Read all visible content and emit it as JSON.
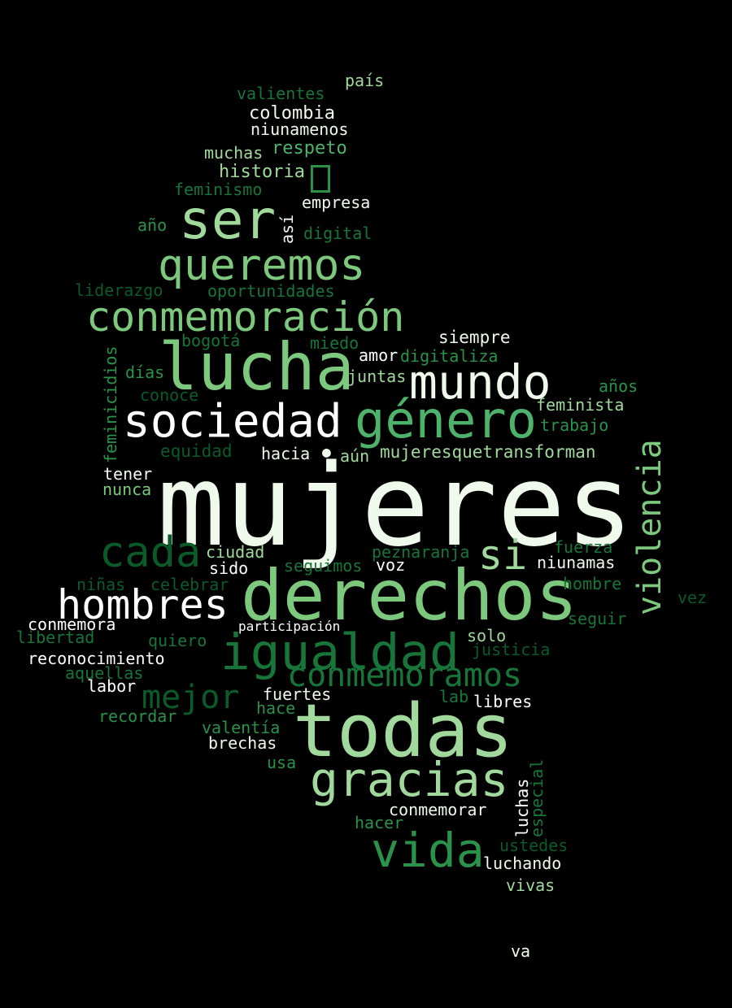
{
  "words": [
    {
      "text": "mujeres",
      "color": "c0"
    },
    {
      "text": "derechos",
      "color": "c2"
    },
    {
      "text": "todas",
      "color": "c1"
    },
    {
      "text": "lucha",
      "color": "c2"
    },
    {
      "text": "igualdad",
      "color": "c5"
    },
    {
      "text": "ser",
      "color": "c1"
    },
    {
      "text": "mundo",
      "color": "c0"
    },
    {
      "text": "sociedad",
      "color": "c7"
    },
    {
      "text": "género",
      "color": "c3"
    },
    {
      "text": "hombres",
      "color": "c7"
    },
    {
      "text": "conmemoración",
      "color": "c2"
    },
    {
      "text": "queremos",
      "color": "c2"
    },
    {
      "text": "gracias",
      "color": "c1"
    },
    {
      "text": "vida",
      "color": "c4"
    },
    {
      "text": "cada",
      "color": "c6"
    },
    {
      "text": "conmemoramos",
      "color": "c5"
    },
    {
      "text": "mejor",
      "color": "c6"
    },
    {
      "text": "si",
      "color": "c1"
    },
    {
      "text": "violencia",
      "color": "c2"
    },
    {
      "text": "país",
      "color": "c1"
    },
    {
      "text": "valientes",
      "color": "c5"
    },
    {
      "text": "colombia",
      "color": "c0"
    },
    {
      "text": "niunamenos",
      "color": "c0"
    },
    {
      "text": "muchas",
      "color": "c1"
    },
    {
      "text": "respeto",
      "color": "c3"
    },
    {
      "text": "historia",
      "color": "c1"
    },
    {
      "text": "feminismo",
      "color": "c5"
    },
    {
      "text": "empresa",
      "color": "c0"
    },
    {
      "text": "año",
      "color": "c4"
    },
    {
      "text": "así",
      "color": "c0"
    },
    {
      "text": "digital",
      "color": "c5"
    },
    {
      "text": "liderazgo",
      "color": "c6"
    },
    {
      "text": "oportunidades",
      "color": "c5"
    },
    {
      "text": "siempre",
      "color": "c0"
    },
    {
      "text": "bogotá",
      "color": "c5"
    },
    {
      "text": "miedo",
      "color": "c5"
    },
    {
      "text": "amor",
      "color": "c7"
    },
    {
      "text": "digitaliza",
      "color": "c4"
    },
    {
      "text": "feminicidios",
      "color": "c4"
    },
    {
      "text": "días",
      "color": "c4"
    },
    {
      "text": "juntas",
      "color": "c1"
    },
    {
      "text": "años",
      "color": "c4"
    },
    {
      "text": "conoce",
      "color": "c6"
    },
    {
      "text": "feminista",
      "color": "c1"
    },
    {
      "text": "trabajo",
      "color": "c4"
    },
    {
      "text": "equidad",
      "color": "c6"
    },
    {
      "text": "hacia",
      "color": "c0"
    },
    {
      "text": "aún",
      "color": "c1"
    },
    {
      "text": "mujeresquetransforman",
      "color": "c1"
    },
    {
      "text": "tener",
      "color": "c0"
    },
    {
      "text": "nunca",
      "color": "c2"
    },
    {
      "text": "ciudad",
      "color": "c1"
    },
    {
      "text": "sido",
      "color": "c7"
    },
    {
      "text": "peznaranja",
      "color": "c5"
    },
    {
      "text": "fuerza",
      "color": "c5"
    },
    {
      "text": "seguimos",
      "color": "c5"
    },
    {
      "text": "voz",
      "color": "c7"
    },
    {
      "text": "niunamas",
      "color": "c0"
    },
    {
      "text": "niñas",
      "color": "c6"
    },
    {
      "text": "celebrar",
      "color": "c6"
    },
    {
      "text": "hombre",
      "color": "c5"
    },
    {
      "text": "vez",
      "color": "c6"
    },
    {
      "text": "conmemora",
      "color": "c7"
    },
    {
      "text": "participación",
      "color": "c7"
    },
    {
      "text": "libertad",
      "color": "c5"
    },
    {
      "text": "quiero",
      "color": "c5"
    },
    {
      "text": "solo",
      "color": "c1"
    },
    {
      "text": "seguir",
      "color": "c5"
    },
    {
      "text": "justicia",
      "color": "c6"
    },
    {
      "text": "reconocimiento",
      "color": "c7"
    },
    {
      "text": "aquellas",
      "color": "c5"
    },
    {
      "text": "labor",
      "color": "c7"
    },
    {
      "text": "fuertes",
      "color": "c0"
    },
    {
      "text": "lab",
      "color": "c5"
    },
    {
      "text": "libres",
      "color": "c7"
    },
    {
      "text": "hace",
      "color": "c4"
    },
    {
      "text": "recordar",
      "color": "c4"
    },
    {
      "text": "valentía",
      "color": "c4"
    },
    {
      "text": "brechas",
      "color": "c0"
    },
    {
      "text": "usa",
      "color": "c4"
    },
    {
      "text": "especial",
      "color": "c5"
    },
    {
      "text": "luchas",
      "color": "c7"
    },
    {
      "text": "conmemorar",
      "color": "c0"
    },
    {
      "text": "hacer",
      "color": "c4"
    },
    {
      "text": "ustedes",
      "color": "c6"
    },
    {
      "text": "luchando",
      "color": "c0"
    },
    {
      "text": "vivas",
      "color": "c1"
    },
    {
      "text": "va",
      "color": "c0"
    }
  ],
  "glyphs": [
    {
      "text": "",
      "color": "c4"
    },
    {
      "text": "●",
      "color": "c0"
    }
  ]
}
